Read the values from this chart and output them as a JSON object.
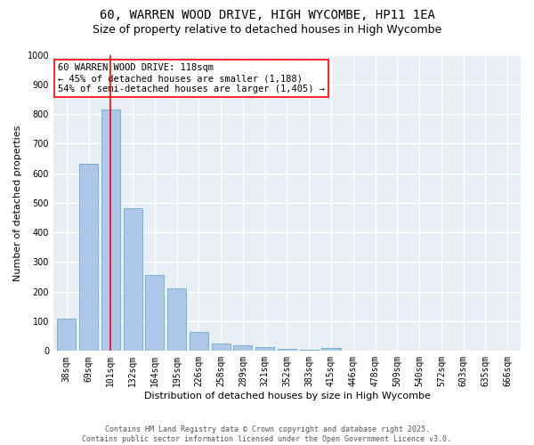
{
  "title_line1": "60, WARREN WOOD DRIVE, HIGH WYCOMBE, HP11 1EA",
  "title_line2": "Size of property relative to detached houses in High Wycombe",
  "xlabel": "Distribution of detached houses by size in High Wycombe",
  "ylabel": "Number of detached properties",
  "categories": [
    "38sqm",
    "69sqm",
    "101sqm",
    "132sqm",
    "164sqm",
    "195sqm",
    "226sqm",
    "258sqm",
    "289sqm",
    "321sqm",
    "352sqm",
    "383sqm",
    "415sqm",
    "446sqm",
    "478sqm",
    "509sqm",
    "540sqm",
    "572sqm",
    "603sqm",
    "635sqm",
    "666sqm"
  ],
  "values": [
    110,
    632,
    815,
    482,
    255,
    210,
    65,
    25,
    18,
    12,
    8,
    5,
    10,
    0,
    0,
    0,
    0,
    0,
    0,
    0,
    0
  ],
  "bar_color": "#aec6e8",
  "bar_edgecolor": "#6aaad4",
  "vline_x": 2,
  "vline_color": "red",
  "annotation_text": "60 WARREN WOOD DRIVE: 118sqm\n← 45% of detached houses are smaller (1,188)\n54% of semi-detached houses are larger (1,405) →",
  "annotation_box_color": "white",
  "annotation_box_edgecolor": "red",
  "ylim": [
    0,
    1000
  ],
  "yticks": [
    0,
    100,
    200,
    300,
    400,
    500,
    600,
    700,
    800,
    900,
    1000
  ],
  "bg_color": "#e8eef4",
  "grid_color": "white",
  "footer": "Contains HM Land Registry data © Crown copyright and database right 2025.\nContains public sector information licensed under the Open Government Licence v3.0.",
  "title_fontsize": 10,
  "subtitle_fontsize": 9,
  "axis_label_fontsize": 8,
  "tick_fontsize": 7,
  "annotation_fontsize": 7.5,
  "footer_fontsize": 6
}
